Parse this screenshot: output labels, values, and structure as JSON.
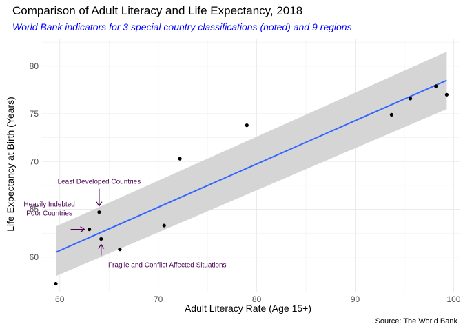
{
  "chart_data": {
    "type": "scatter",
    "title": "Comparison of Adult Literacy and Life Expectancy, 2018",
    "subtitle": "World Bank indicators for 3 special country classifications (noted) and 9 regions",
    "caption": "Source: The World Bank",
    "xlabel": "Adult Literacy Rate (Age 15+)",
    "ylabel": "Life Expectancy at Birth (Years)",
    "xlim": [
      58.2,
      100.6
    ],
    "ylim": [
      56.3,
      82.8
    ],
    "x_ticks": [
      60,
      70,
      80,
      90,
      100
    ],
    "y_ticks": [
      60,
      65,
      70,
      75,
      80
    ],
    "grid": true,
    "points": [
      {
        "x": 59.6,
        "y": 57.2
      },
      {
        "x": 63.0,
        "y": 62.9
      },
      {
        "x": 64.0,
        "y": 64.7
      },
      {
        "x": 64.2,
        "y": 61.9
      },
      {
        "x": 66.1,
        "y": 60.8
      },
      {
        "x": 70.6,
        "y": 63.3
      },
      {
        "x": 72.2,
        "y": 70.3
      },
      {
        "x": 79.0,
        "y": 73.8
      },
      {
        "x": 93.7,
        "y": 74.9
      },
      {
        "x": 95.6,
        "y": 76.6
      },
      {
        "x": 98.2,
        "y": 77.9
      },
      {
        "x": 99.3,
        "y": 77.0
      }
    ],
    "trend": {
      "method": "linear",
      "x": [
        59.6,
        99.3
      ],
      "y": [
        60.5,
        78.5
      ],
      "ci_lower": [
        58.0,
        75.5
      ],
      "ci_upper": [
        63.2,
        81.5
      ],
      "line_color": "#3366ff",
      "band_color": "#d3d3d3"
    },
    "annotations": [
      {
        "lines": [
          "Least Developed Countries"
        ],
        "point_x": 64.0,
        "point_y": 64.7
      },
      {
        "lines": [
          "Heavily Indebted",
          "Poor Countries"
        ],
        "point_x": 63.0,
        "point_y": 62.9
      },
      {
        "lines": [
          "Fragile and Conflict Affected Situations"
        ],
        "point_x": 64.2,
        "point_y": 61.9
      }
    ],
    "annotation_color": "#4b0055"
  }
}
